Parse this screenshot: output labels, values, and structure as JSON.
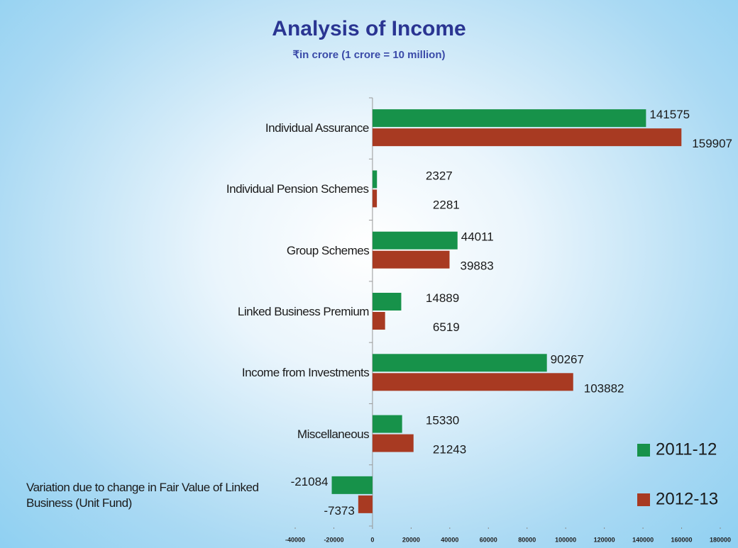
{
  "chart_data": {
    "type": "barh",
    "title": "Analysis of Income",
    "subtitle": "₹in crore (1 crore = 10 million)",
    "categories": [
      "Individual Assurance",
      "Individual Pension Schemes",
      "Group Schemes",
      "Linked Business Premium",
      "Income from Investments",
      "Miscellaneous",
      "Variation due to change in Fair Value of Linked Business (Unit Fund)"
    ],
    "series": [
      {
        "name": "2011-12",
        "color": "#17924a",
        "values": [
          141575,
          2327,
          44011,
          14889,
          90267,
          15330,
          -21084
        ]
      },
      {
        "name": "2012-13",
        "color": "#a83a22",
        "values": [
          159907,
          2281,
          39883,
          6519,
          103882,
          21243,
          -7373
        ]
      }
    ],
    "xlim": [
      -40000,
      180000
    ],
    "xticks": [
      -40000,
      -20000,
      0,
      20000,
      40000,
      60000,
      80000,
      100000,
      120000,
      140000,
      160000,
      180000
    ],
    "legend": "lower right"
  }
}
